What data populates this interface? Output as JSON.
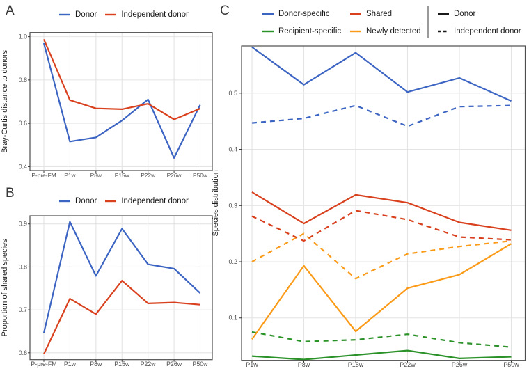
{
  "figure": {
    "panels": [
      {
        "label": "A"
      },
      {
        "label": "B"
      },
      {
        "label": "C"
      }
    ]
  },
  "colors": {
    "blue": "#3C64C3",
    "red": "#D9411E",
    "green": "#2A9228",
    "orange": "#FB9A17",
    "black": "#1A1A1A",
    "grid": "#E4E4E4",
    "panel_border": "#4D4D4D",
    "tick_label": "#4D4D4D"
  },
  "chart_data": [
    {
      "id": "A",
      "type": "line",
      "title": "",
      "xlabel": "",
      "ylabel": "Bray-Curtis distance to donors",
      "categories": [
        "P-pre-FM",
        "P1w",
        "P8w",
        "P15w",
        "P22w",
        "P26w",
        "P50w"
      ],
      "yticks": [
        0.4,
        0.6,
        0.8,
        1.0
      ],
      "ylim": [
        0.382,
        1.019
      ],
      "grid": true,
      "legend_position": "top",
      "legend": [
        {
          "label": "Donor",
          "color": "#3C64C3",
          "dash": "solid"
        },
        {
          "label": "Independent donor",
          "color": "#D9411E",
          "dash": "solid"
        }
      ],
      "series": [
        {
          "name": "Donor",
          "color": "#3C64C3",
          "linetype": "solid",
          "values": [
            0.97,
            0.516,
            0.535,
            0.613,
            0.71,
            0.44,
            0.685
          ]
        },
        {
          "name": "Independent donor",
          "color": "#D9411E",
          "linetype": "solid",
          "values": [
            0.988,
            0.707,
            0.669,
            0.665,
            0.69,
            0.618,
            0.668
          ]
        }
      ]
    },
    {
      "id": "B",
      "type": "line",
      "title": "",
      "xlabel": "",
      "ylabel": "Proportion of shared species",
      "categories": [
        "P-pre-FM",
        "P1w",
        "P8w",
        "P15w",
        "P22w",
        "P26w",
        "P50w"
      ],
      "yticks": [
        0.6,
        0.7,
        0.8,
        0.9
      ],
      "ylim": [
        0.584,
        0.919
      ],
      "grid": true,
      "legend_position": "top",
      "legend": [
        {
          "label": "Donor",
          "color": "#3C64C3",
          "dash": "solid"
        },
        {
          "label": "Independent donor",
          "color": "#D9411E",
          "dash": "solid"
        }
      ],
      "series": [
        {
          "name": "Donor",
          "color": "#3C64C3",
          "linetype": "solid",
          "values": [
            0.646,
            0.905,
            0.779,
            0.889,
            0.806,
            0.796,
            0.739
          ]
        },
        {
          "name": "Independent donor",
          "color": "#D9411E",
          "linetype": "solid",
          "values": [
            0.597,
            0.726,
            0.69,
            0.768,
            0.715,
            0.717,
            0.712
          ]
        }
      ]
    },
    {
      "id": "C",
      "type": "line",
      "title": "",
      "xlabel": "",
      "ylabel": "Species distribution",
      "categories": [
        "P1w",
        "P8w",
        "P15w",
        "P22w",
        "P26w",
        "P50w"
      ],
      "yticks": [
        0.1,
        0.2,
        0.3,
        0.4,
        0.5
      ],
      "ylim": [
        0.0245,
        0.584
      ],
      "grid": true,
      "legend_position": "top",
      "color_legend": [
        {
          "label": "Donor-specific",
          "color": "#3C64C3",
          "dash": "solid"
        },
        {
          "label": "Recipient-specific",
          "color": "#2A9228",
          "dash": "solid"
        },
        {
          "label": "Shared",
          "color": "#D9411E",
          "dash": "solid"
        },
        {
          "label": "Newly detected",
          "color": "#FB9A17",
          "dash": "solid"
        }
      ],
      "linetype_legend": [
        {
          "label": "Donor",
          "color": "#1A1A1A",
          "dash": "solid"
        },
        {
          "label": "Independent donor",
          "color": "#1A1A1A",
          "dash": "dashed"
        }
      ],
      "series": [
        {
          "name": "Recipient-specific (Donor)",
          "color": "#2A9228",
          "linetype": "solid",
          "values": [
            0.032,
            0.026,
            0.034,
            0.042,
            0.028,
            0.031
          ]
        },
        {
          "name": "Recipient-specific (Independent donor)",
          "color": "#2A9228",
          "linetype": "dashed",
          "values": [
            0.075,
            0.058,
            0.061,
            0.071,
            0.056,
            0.048
          ]
        },
        {
          "name": "Newly detected (Donor)",
          "color": "#FB9A17",
          "linetype": "solid",
          "values": [
            0.062,
            0.193,
            0.076,
            0.153,
            0.177,
            0.232
          ]
        },
        {
          "name": "Newly detected (Independent donor)",
          "color": "#FB9A17",
          "linetype": "dashed",
          "values": [
            0.2,
            0.25,
            0.17,
            0.214,
            0.227,
            0.237
          ]
        },
        {
          "name": "Shared (Donor)",
          "color": "#D9411E",
          "linetype": "solid",
          "values": [
            0.324,
            0.268,
            0.319,
            0.305,
            0.27,
            0.256
          ]
        },
        {
          "name": "Shared (Independent donor)",
          "color": "#D9411E",
          "linetype": "dashed",
          "values": [
            0.281,
            0.237,
            0.291,
            0.275,
            0.244,
            0.239
          ]
        },
        {
          "name": "Donor-specific (Donor)",
          "color": "#3C64C3",
          "linetype": "solid",
          "values": [
            0.582,
            0.515,
            0.572,
            0.502,
            0.527,
            0.486
          ]
        },
        {
          "name": "Donor-specific (Independent donor)",
          "color": "#3C64C3",
          "linetype": "dashed",
          "values": [
            0.447,
            0.455,
            0.478,
            0.441,
            0.476,
            0.478
          ]
        }
      ]
    }
  ]
}
